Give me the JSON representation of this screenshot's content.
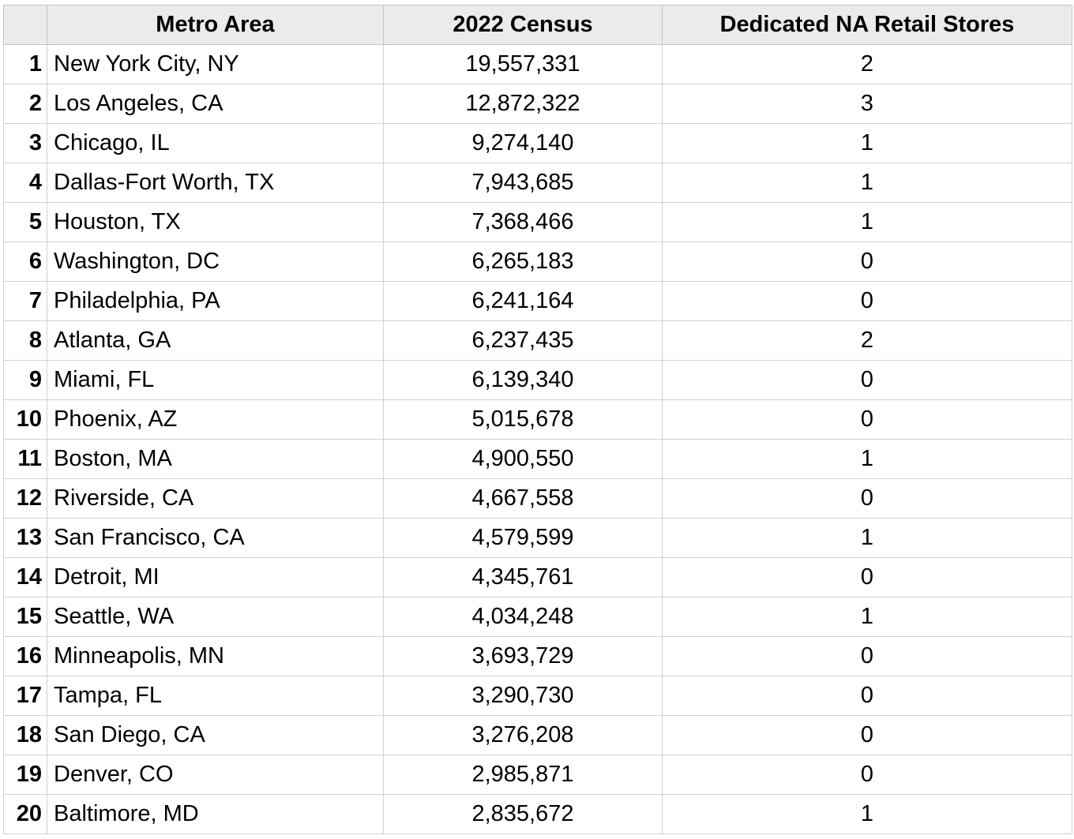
{
  "table": {
    "headers": {
      "index": "",
      "metro": "Metro Area",
      "census": "2022 Census",
      "stores": "Dedicated NA Retail Stores"
    },
    "rows": [
      {
        "n": "1",
        "metro": "New York City, NY",
        "census": "19,557,331",
        "stores": "2"
      },
      {
        "n": "2",
        "metro": "Los Angeles, CA",
        "census": "12,872,322",
        "stores": "3"
      },
      {
        "n": "3",
        "metro": "Chicago, IL",
        "census": "9,274,140",
        "stores": "1"
      },
      {
        "n": "4",
        "metro": "Dallas-Fort Worth, TX",
        "census": "7,943,685",
        "stores": "1"
      },
      {
        "n": "5",
        "metro": "Houston, TX",
        "census": "7,368,466",
        "stores": "1"
      },
      {
        "n": "6",
        "metro": "Washington, DC",
        "census": "6,265,183",
        "stores": "0"
      },
      {
        "n": "7",
        "metro": "Philadelphia, PA",
        "census": "6,241,164",
        "stores": "0"
      },
      {
        "n": "8",
        "metro": "Atlanta, GA",
        "census": "6,237,435",
        "stores": "2"
      },
      {
        "n": "9",
        "metro": "Miami, FL",
        "census": "6,139,340",
        "stores": "0"
      },
      {
        "n": "10",
        "metro": "Phoenix, AZ",
        "census": "5,015,678",
        "stores": "0"
      },
      {
        "n": "11",
        "metro": "Boston, MA",
        "census": "4,900,550",
        "stores": "1"
      },
      {
        "n": "12",
        "metro": "Riverside, CA",
        "census": "4,667,558",
        "stores": "0"
      },
      {
        "n": "13",
        "metro": "San Francisco, CA",
        "census": "4,579,599",
        "stores": "1"
      },
      {
        "n": "14",
        "metro": "Detroit, MI",
        "census": "4,345,761",
        "stores": "0"
      },
      {
        "n": "15",
        "metro": "Seattle, WA",
        "census": "4,034,248",
        "stores": "1"
      },
      {
        "n": "16",
        "metro": "Minneapolis, MN",
        "census": "3,693,729",
        "stores": "0"
      },
      {
        "n": "17",
        "metro": "Tampa, FL",
        "census": "3,290,730",
        "stores": "0"
      },
      {
        "n": "18",
        "metro": "San Diego, CA",
        "census": "3,276,208",
        "stores": "0"
      },
      {
        "n": "19",
        "metro": "Denver, CO",
        "census": "2,985,871",
        "stores": "0"
      },
      {
        "n": "20",
        "metro": "Baltimore, MD",
        "census": "2,835,672",
        "stores": "1"
      }
    ]
  }
}
